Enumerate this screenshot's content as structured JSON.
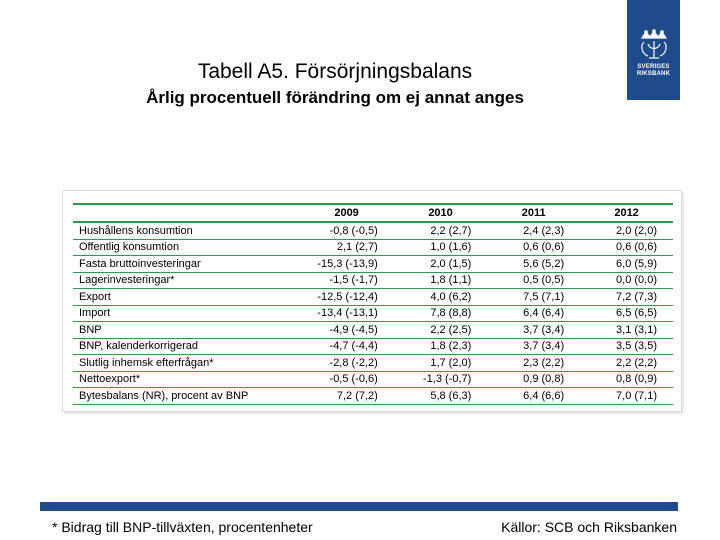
{
  "logo": {
    "line1": "SVERIGES",
    "line2": "RIKSBANK"
  },
  "title": "Tabell A5. Försörjningsbalans",
  "subtitle": "Årlig procentuell förändring om ej annat anges",
  "table": {
    "columns": [
      "",
      "2009",
      "2010",
      "2011",
      "2012"
    ],
    "rows": [
      [
        "Hushållens konsumtion",
        "-0,8 (-0,5)",
        "2,2 (2,7)",
        "2,4 (2,3)",
        "2,0 (2,0)"
      ],
      [
        "Offentlig konsumtion",
        "2,1 (2,7)",
        "1,0 (1,6)",
        "0,6 (0,6)",
        "0,6 (0,6)"
      ],
      [
        "Fasta bruttoinvesteringar",
        "-15,3 (-13,9)",
        "2,0 (1,5)",
        "5,6 (5,2)",
        "6,0 (5,9)"
      ],
      [
        "Lagerinvesteringar*",
        "-1,5 (-1,7)",
        "1,8 (1,1)",
        "0,5 (0,5)",
        "0,0 (0,0)"
      ],
      [
        "Export",
        "-12,5 (-12,4)",
        "4,0 (6,2)",
        "7,5 (7,1)",
        "7,2 (7,3)"
      ],
      [
        "Import",
        "-13,4 (-13,1)",
        "7,8 (8,8)",
        "6,4 (6,4)",
        "6,5 (6,5)"
      ],
      [
        "BNP",
        "-4,9 (-4,5)",
        "2,2 (2,5)",
        "3,7 (3,4)",
        "3,1 (3,1)"
      ],
      [
        "BNP, kalenderkorrigerad",
        "-4,7 (-4,4)",
        "1,8 (2,3)",
        "3,7 (3,4)",
        "3,5 (3,5)"
      ],
      [
        "Slutlig inhemsk efterfrågan*",
        "-2,8 (-2,2)",
        "1,7 (2,0)",
        "2,3 (2,2)",
        "2,2 (2,2)"
      ],
      [
        "Nettoexport*",
        "-0,5 (-0,6)",
        "-1,3 (-0,7)",
        "0,9 (0,8)",
        "0,8 (0,9)"
      ],
      [
        "Bytesbalans (NR), procent av BNP",
        "7,2 (7,2)",
        "5,8 (6,3)",
        "6,4 (6,6)",
        "7,0 (7,1)"
      ]
    ]
  },
  "footnote": "* Bidrag till BNP-tillväxten, procentenheter",
  "sources": "Källor: SCB och Riksbanken",
  "colors": {
    "brand": "#1f4a8c",
    "rule": "#2e9b4e"
  },
  "icons": {
    "logo": "riksbank-crown-crest-icon"
  }
}
